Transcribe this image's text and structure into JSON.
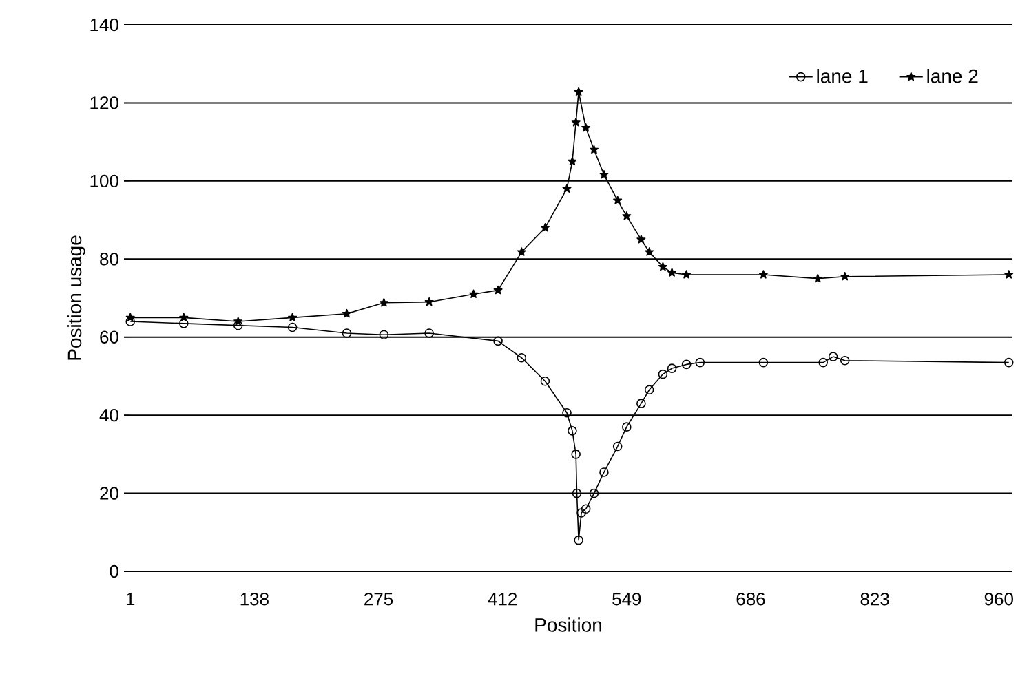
{
  "chart_data": {
    "type": "line",
    "xlabel": "Position",
    "ylabel": "Position usage",
    "xlim": [
      -6,
      975
    ],
    "xticks": [
      1,
      138,
      275,
      412,
      549,
      686,
      823,
      960
    ],
    "ylim": [
      0,
      140
    ],
    "yticks": [
      0,
      20,
      40,
      60,
      80,
      100,
      120,
      140
    ],
    "grid": "y",
    "legend": "top right",
    "series": [
      {
        "name": "lane 1",
        "color": "#000000",
        "marker": "circle",
        "x": [
          1,
          60,
          120,
          180,
          240,
          281,
          331,
          407,
          433,
          459,
          483,
          489,
          493,
          494,
          496,
          499,
          504,
          513,
          524,
          539,
          549,
          565,
          574,
          589,
          599,
          615,
          630,
          700,
          766,
          777,
          790,
          971
        ],
        "values": [
          64,
          63.5,
          63,
          62.5,
          61,
          60.6,
          61,
          59,
          54.7,
          48.7,
          40.6,
          36,
          30,
          20,
          8,
          15,
          16,
          20,
          25.4,
          32,
          37,
          43,
          46.5,
          50.5,
          52,
          53,
          53.5,
          53.5,
          53.5,
          55,
          54,
          53.5
        ]
      },
      {
        "name": "lane 2",
        "color": "#000000",
        "marker": "star",
        "x": [
          1,
          60,
          120,
          180,
          240,
          281,
          331,
          380,
          407,
          433,
          459,
          483,
          489,
          493,
          496,
          504,
          513,
          524,
          539,
          549,
          565,
          574,
          589,
          599,
          615,
          700,
          760,
          790,
          971
        ],
        "values": [
          65,
          65,
          64,
          65,
          66,
          68.8,
          69,
          71,
          72,
          81.8,
          88,
          98,
          105,
          115,
          122.8,
          113.6,
          108,
          101.6,
          95,
          91,
          85,
          81.8,
          78,
          76.5,
          76,
          76,
          75,
          75.5,
          76
        ]
      }
    ]
  }
}
